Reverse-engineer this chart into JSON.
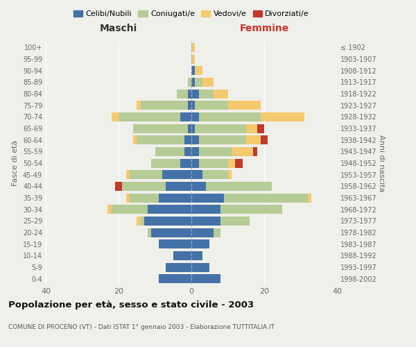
{
  "age_groups": [
    "0-4",
    "5-9",
    "10-14",
    "15-19",
    "20-24",
    "25-29",
    "30-34",
    "35-39",
    "40-44",
    "45-49",
    "50-54",
    "55-59",
    "60-64",
    "65-69",
    "70-74",
    "75-79",
    "80-84",
    "85-89",
    "90-94",
    "95-99",
    "100+"
  ],
  "birth_years": [
    "1998-2002",
    "1993-1997",
    "1988-1992",
    "1983-1987",
    "1978-1982",
    "1973-1977",
    "1968-1972",
    "1963-1967",
    "1958-1962",
    "1953-1957",
    "1948-1952",
    "1943-1947",
    "1938-1942",
    "1933-1937",
    "1928-1932",
    "1923-1927",
    "1918-1922",
    "1913-1917",
    "1908-1912",
    "1903-1907",
    "≤ 1902"
  ],
  "males": {
    "celibe": [
      9,
      7,
      5,
      9,
      11,
      13,
      12,
      9,
      7,
      8,
      3,
      2,
      2,
      1,
      3,
      1,
      1,
      0,
      0,
      0,
      0
    ],
    "coniugato": [
      0,
      0,
      0,
      0,
      1,
      1,
      10,
      8,
      12,
      9,
      8,
      8,
      13,
      15,
      17,
      13,
      3,
      1,
      0,
      0,
      0
    ],
    "vedovo": [
      0,
      0,
      0,
      0,
      0,
      1,
      1,
      1,
      0,
      1,
      0,
      0,
      1,
      0,
      2,
      1,
      0,
      0,
      0,
      0,
      0
    ],
    "divorziato": [
      0,
      0,
      0,
      0,
      0,
      0,
      0,
      0,
      2,
      0,
      0,
      0,
      0,
      0,
      0,
      0,
      0,
      0,
      0,
      0,
      0
    ]
  },
  "females": {
    "nubile": [
      8,
      5,
      3,
      5,
      6,
      8,
      8,
      9,
      4,
      3,
      2,
      2,
      2,
      1,
      2,
      1,
      2,
      1,
      1,
      0,
      0
    ],
    "coniugata": [
      0,
      0,
      0,
      0,
      2,
      8,
      17,
      23,
      18,
      7,
      8,
      9,
      13,
      14,
      17,
      9,
      4,
      2,
      0,
      0,
      0
    ],
    "vedova": [
      0,
      0,
      0,
      0,
      0,
      0,
      0,
      1,
      0,
      1,
      2,
      6,
      4,
      3,
      12,
      9,
      4,
      3,
      2,
      1,
      1
    ],
    "divorziata": [
      0,
      0,
      0,
      0,
      0,
      0,
      0,
      0,
      0,
      0,
      2,
      1,
      2,
      2,
      0,
      0,
      0,
      0,
      0,
      0,
      0
    ]
  },
  "colors": {
    "celibe_nubile": "#4472a8",
    "coniugato": "#b5cc96",
    "vedovo": "#f5c96e",
    "divorziato": "#c0392b"
  },
  "title": "Popolazione per età, sesso e stato civile - 2003",
  "subtitle": "COMUNE DI PROCENO (VT) - Dati ISTAT 1° gennaio 2003 - Elaborazione TUTTITALIA.IT",
  "xlabel_left": "Maschi",
  "xlabel_right": "Femmine",
  "ylabel_left": "Fasce di età",
  "ylabel_right": "Anni di nascita",
  "xlim": 40,
  "background_color": "#f0f0eb",
  "grid_color": "#ffffff",
  "legend_labels": [
    "Celibi/Nubili",
    "Coniugati/e",
    "Vedovi/e",
    "Divorziati/e"
  ]
}
